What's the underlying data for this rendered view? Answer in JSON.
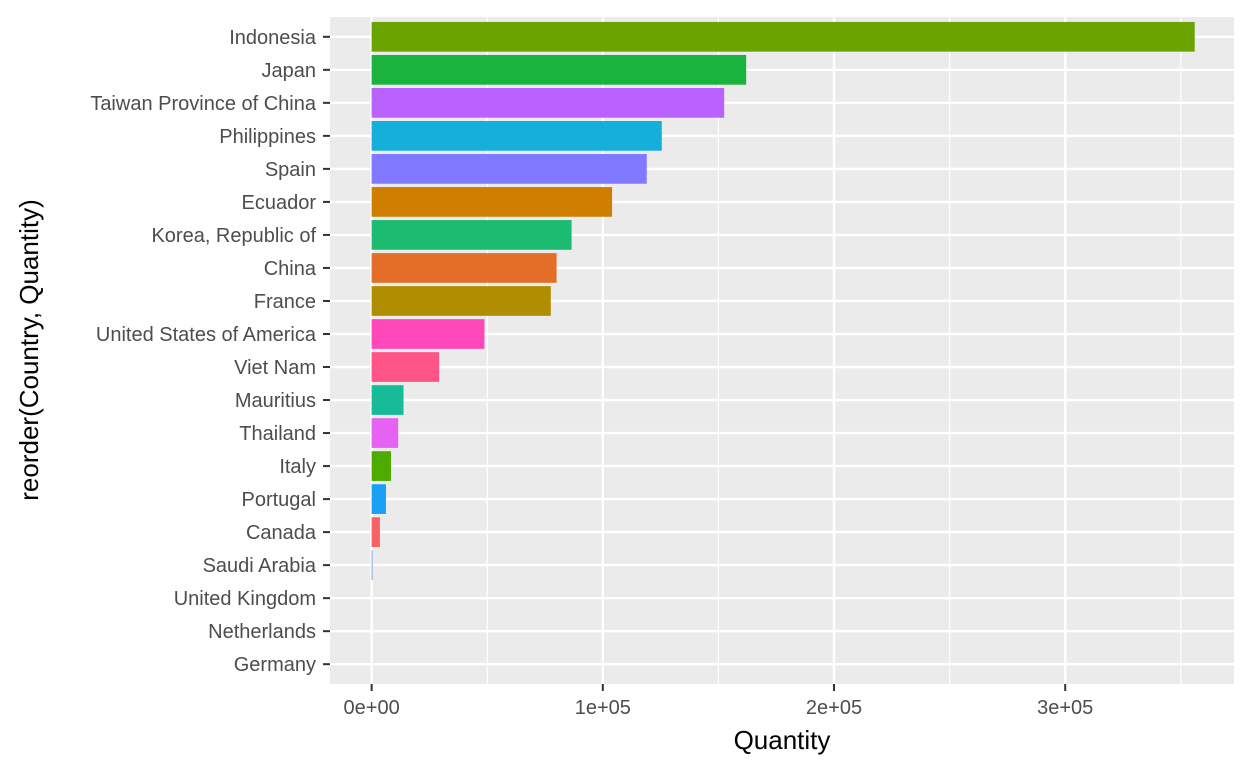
{
  "chart_data": {
    "type": "bar",
    "orientation": "horizontal",
    "xlabel": "Quantity",
    "ylabel": "reorder(Country, Quantity)",
    "xlim": [
      -18000,
      373000
    ],
    "x_ticks": [
      0,
      100000,
      200000,
      300000
    ],
    "x_tick_labels": [
      "0e+00",
      "1e+05",
      "2e+05",
      "3e+05"
    ],
    "grid": true,
    "legend": "none",
    "categories": [
      "Indonesia",
      "Japan",
      "Taiwan Province of China",
      "Philippines",
      "Spain",
      "Ecuador",
      "Korea, Republic of",
      "China",
      "France",
      "United States of America",
      "Viet Nam",
      "Mauritius",
      "Thailand",
      "Italy",
      "Portugal",
      "Canada",
      "Saudi Arabia",
      "United Kingdom",
      "Netherlands",
      "Germany"
    ],
    "values": [
      356000,
      162000,
      152500,
      125500,
      119000,
      104000,
      86500,
      80000,
      77500,
      48800,
      29200,
      13800,
      11500,
      8400,
      6200,
      3600,
      400,
      0,
      0,
      0
    ],
    "colors": [
      "#6BA300",
      "#1AB33E",
      "#B962FF",
      "#14B0DB",
      "#8179FF",
      "#CF7E00",
      "#1BBB71",
      "#E36E27",
      "#B08E00",
      "#FF48BA",
      "#FF5487",
      "#18BB97",
      "#E562F2",
      "#4DAB00",
      "#1AA0F5",
      "#F76265",
      "#7FA7E0",
      "#7FA7E0",
      "#7FA7E0",
      "#7FA7E0"
    ]
  }
}
